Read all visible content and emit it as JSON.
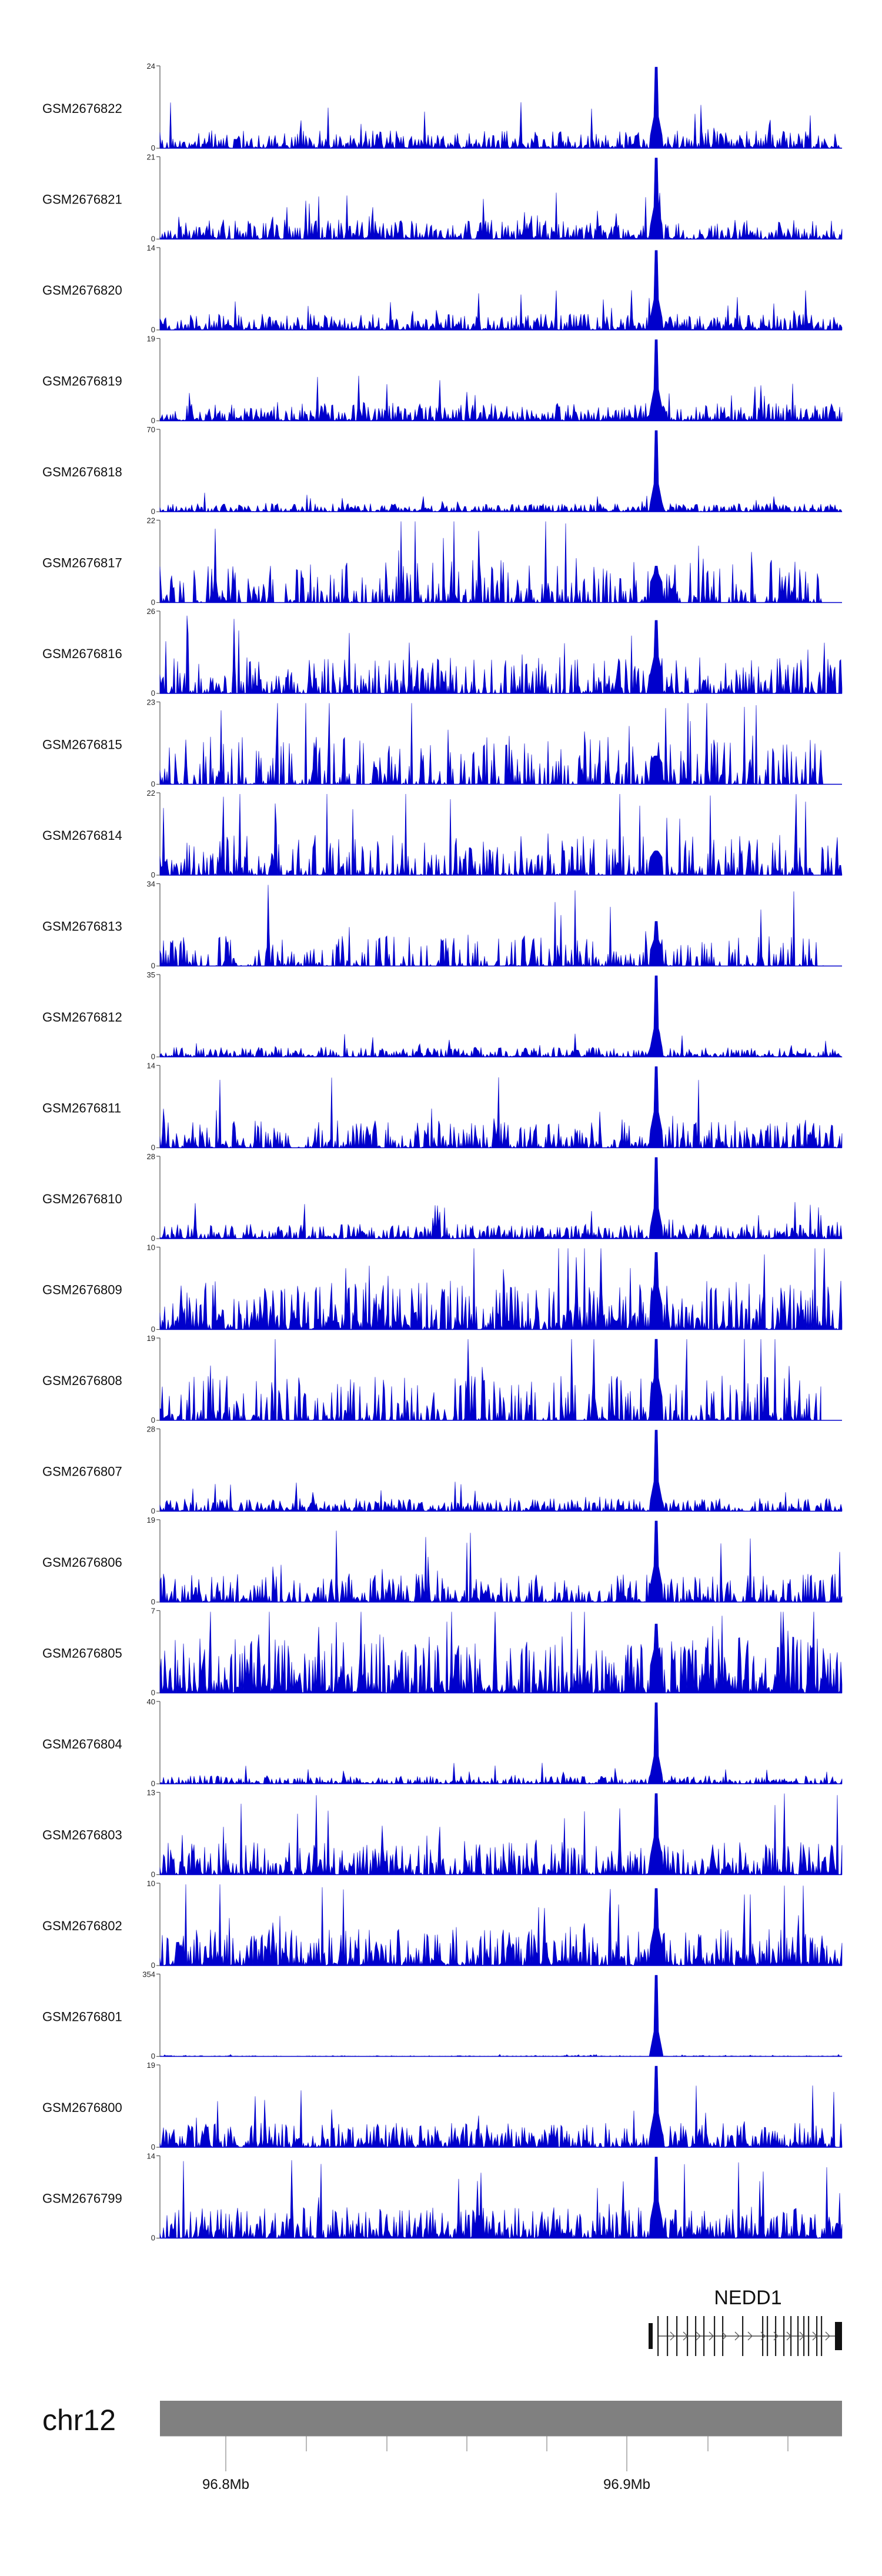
{
  "chart_data": {
    "type": "area",
    "chromosome": "chr12",
    "x_ticks": [
      "96.8Mb",
      "96.9Mb"
    ],
    "gene": {
      "name": "NEDD1"
    },
    "colors": {
      "signal": "#0000cc",
      "ideogram": "#808080",
      "axis": "#555555"
    },
    "tracks": [
      {
        "name": "GSM2676822",
        "ymax": "24",
        "ymin": "0",
        "peak_frac": 1.0,
        "noise": 0.22,
        "sparse": 0.0,
        "seed": 11
      },
      {
        "name": "GSM2676821",
        "ymax": "21",
        "ymin": "0",
        "peak_frac": 1.0,
        "noise": 0.24,
        "sparse": 0.0,
        "seed": 12
      },
      {
        "name": "GSM2676820",
        "ymax": "14",
        "ymin": "0",
        "peak_frac": 0.98,
        "noise": 0.2,
        "sparse": 0.0,
        "seed": 13
      },
      {
        "name": "GSM2676819",
        "ymax": "19",
        "ymin": "0",
        "peak_frac": 1.0,
        "noise": 0.22,
        "sparse": 0.0,
        "seed": 14
      },
      {
        "name": "GSM2676818",
        "ymax": "70",
        "ymin": "0",
        "peak_frac": 1.0,
        "noise": 0.1,
        "sparse": 0.0,
        "seed": 15
      },
      {
        "name": "GSM2676817",
        "ymax": "22",
        "ymin": "0",
        "peak_frac": 0.45,
        "noise": 0.55,
        "sparse": 0.6,
        "seed": 16
      },
      {
        "name": "GSM2676816",
        "ymax": "26",
        "ymin": "0",
        "peak_frac": 0.9,
        "noise": 0.45,
        "sparse": 0.5,
        "seed": 17
      },
      {
        "name": "GSM2676815",
        "ymax": "23",
        "ymin": "0",
        "peak_frac": 0.35,
        "noise": 0.6,
        "sparse": 0.7,
        "seed": 18
      },
      {
        "name": "GSM2676814",
        "ymax": "22",
        "ymin": "0",
        "peak_frac": 0.3,
        "noise": 0.5,
        "sparse": 0.5,
        "seed": 19
      },
      {
        "name": "GSM2676813",
        "ymax": "34",
        "ymin": "0",
        "peak_frac": 0.55,
        "noise": 0.4,
        "sparse": 0.75,
        "seed": 20
      },
      {
        "name": "GSM2676812",
        "ymax": "35",
        "ymin": "0",
        "peak_frac": 1.0,
        "noise": 0.12,
        "sparse": 0.0,
        "seed": 21
      },
      {
        "name": "GSM2676811",
        "ymax": "14",
        "ymin": "0",
        "peak_frac": 1.0,
        "noise": 0.35,
        "sparse": 0.3,
        "seed": 22
      },
      {
        "name": "GSM2676810",
        "ymax": "28",
        "ymin": "0",
        "peak_frac": 1.0,
        "noise": 0.18,
        "sparse": 0.0,
        "seed": 23
      },
      {
        "name": "GSM2676809",
        "ymax": "10",
        "ymin": "0",
        "peak_frac": 0.95,
        "noise": 0.6,
        "sparse": 0.1,
        "seed": 24
      },
      {
        "name": "GSM2676808",
        "ymax": "19",
        "ymin": "0",
        "peak_frac": 1.0,
        "noise": 0.55,
        "sparse": 0.6,
        "seed": 25
      },
      {
        "name": "GSM2676807",
        "ymax": "28",
        "ymin": "0",
        "peak_frac": 1.0,
        "noise": 0.16,
        "sparse": 0.0,
        "seed": 26
      },
      {
        "name": "GSM2676806",
        "ymax": "19",
        "ymin": "0",
        "peak_frac": 1.0,
        "noise": 0.35,
        "sparse": 0.2,
        "seed": 27
      },
      {
        "name": "GSM2676805",
        "ymax": "7",
        "ymin": "0",
        "peak_frac": 0.85,
        "noise": 0.7,
        "sparse": 0.0,
        "seed": 28
      },
      {
        "name": "GSM2676804",
        "ymax": "40",
        "ymin": "0",
        "peak_frac": 1.0,
        "noise": 0.1,
        "sparse": 0.0,
        "seed": 29
      },
      {
        "name": "GSM2676803",
        "ymax": "13",
        "ymin": "0",
        "peak_frac": 1.0,
        "noise": 0.4,
        "sparse": 0.1,
        "seed": 30
      },
      {
        "name": "GSM2676802",
        "ymax": "10",
        "ymin": "0",
        "peak_frac": 0.95,
        "noise": 0.45,
        "sparse": 0.1,
        "seed": 31
      },
      {
        "name": "GSM2676801",
        "ymax": "354",
        "ymin": "0",
        "peak_frac": 1.0,
        "noise": 0.01,
        "sparse": 0.0,
        "seed": 32
      },
      {
        "name": "GSM2676800",
        "ymax": "19",
        "ymin": "0",
        "peak_frac": 1.0,
        "noise": 0.3,
        "sparse": 0.1,
        "seed": 33
      },
      {
        "name": "GSM2676799",
        "ymax": "14",
        "ymin": "0",
        "peak_frac": 1.0,
        "noise": 0.38,
        "sparse": 0.1,
        "seed": 34
      }
    ]
  }
}
